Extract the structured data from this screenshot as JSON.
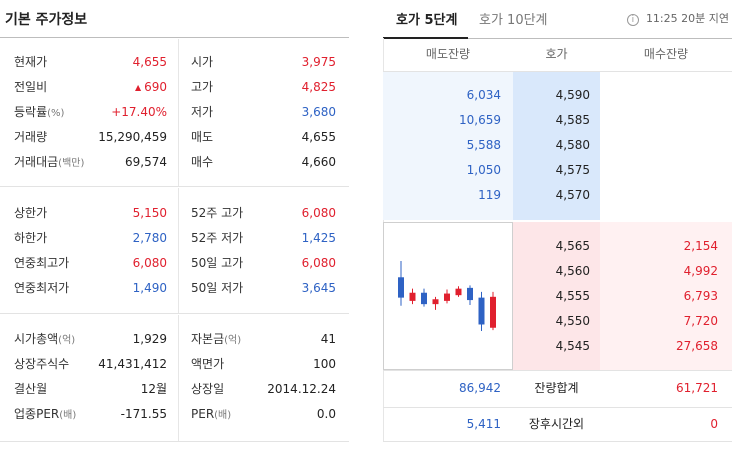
{
  "left": {
    "title": "기본 주가정보",
    "sections": [
      [
        {
          "l1": "현재가",
          "u1": "",
          "v1": "4,655",
          "c1": "red",
          "l2": "시가",
          "u2": "",
          "v2": "3,975",
          "c2": "red"
        },
        {
          "l1": "전일비",
          "u1": "",
          "v1": "690",
          "c1": "red",
          "tri": "▲",
          "l2": "고가",
          "u2": "",
          "v2": "4,825",
          "c2": "red"
        },
        {
          "l1": "등락률",
          "u1": "(%)",
          "v1": "+17.40%",
          "c1": "red",
          "l2": "저가",
          "u2": "",
          "v2": "3,680",
          "c2": "blue"
        },
        {
          "l1": "거래량",
          "u1": "",
          "v1": "15,290,459",
          "c1": "dark",
          "l2": "매도",
          "u2": "",
          "v2": "4,655",
          "c2": "dark"
        },
        {
          "l1": "거래대금",
          "u1": "(백만)",
          "v1": "69,574",
          "c1": "dark",
          "l2": "매수",
          "u2": "",
          "v2": "4,660",
          "c2": "dark"
        }
      ],
      [
        {
          "l1": "상한가",
          "u1": "",
          "v1": "5,150",
          "c1": "red",
          "l2": "52주 고가",
          "u2": "",
          "v2": "6,080",
          "c2": "red"
        },
        {
          "l1": "하한가",
          "u1": "",
          "v1": "2,780",
          "c1": "blue",
          "l2": "52주 저가",
          "u2": "",
          "v2": "1,425",
          "c2": "blue"
        },
        {
          "l1": "연중최고가",
          "u1": "",
          "v1": "6,080",
          "c1": "red",
          "l2": "50일 고가",
          "u2": "",
          "v2": "6,080",
          "c2": "red"
        },
        {
          "l1": "연중최저가",
          "u1": "",
          "v1": "1,490",
          "c1": "blue",
          "l2": "50일 저가",
          "u2": "",
          "v2": "3,645",
          "c2": "blue"
        }
      ],
      [
        {
          "l1": "시가총액",
          "u1": "(억)",
          "v1": "1,929",
          "c1": "dark",
          "l2": "자본금",
          "u2": "(억)",
          "v2": "41",
          "c2": "dark"
        },
        {
          "l1": "상장주식수",
          "u1": "",
          "v1": "41,431,412",
          "c1": "dark",
          "l2": "액면가",
          "u2": "",
          "v2": "100",
          "c2": "dark"
        },
        {
          "l1": "결산월",
          "u1": "",
          "v1": "12월",
          "c1": "dark",
          "l2": "상장일",
          "u2": "",
          "v2": "2014.12.24",
          "c2": "dark"
        },
        {
          "l1": "업종PER",
          "u1": "(배)",
          "v1": "-171.55",
          "c1": "dark",
          "l2": "PER",
          "u2": "(배)",
          "v2": "0.0",
          "c2": "dark"
        }
      ]
    ]
  },
  "right": {
    "tabs": [
      {
        "label": "호가 5단계",
        "active": true
      },
      {
        "label": "호가 10단계",
        "active": false
      }
    ],
    "time_label": "11:25 20분 지연",
    "info_icon": "i",
    "headers": {
      "sell": "매도잔량",
      "price": "호가",
      "buy": "매수잔량"
    },
    "sell_orders": [
      {
        "qty": "6,034",
        "price": "4,590"
      },
      {
        "qty": "10,659",
        "price": "4,585"
      },
      {
        "qty": "5,588",
        "price": "4,580"
      },
      {
        "qty": "1,050",
        "price": "4,575"
      },
      {
        "qty": "119",
        "price": "4,570"
      }
    ],
    "buy_orders": [
      {
        "price": "4,565",
        "qty": "2,154"
      },
      {
        "price": "4,560",
        "qty": "4,992"
      },
      {
        "price": "4,555",
        "qty": "6,793"
      },
      {
        "price": "4,550",
        "qty": "7,720"
      },
      {
        "price": "4,545",
        "qty": "27,658"
      }
    ],
    "summary": [
      {
        "sell": "86,942",
        "label": "잔량합계",
        "buy": "61,721"
      },
      {
        "sell": "5,411",
        "label": "장후시간외",
        "buy": "0"
      }
    ],
    "mini_chart": {
      "up_color": "#e0202e",
      "down_color": "#2e62c4",
      "candles": [
        {
          "dir": "down",
          "open": 4300,
          "close": 4050,
          "high": 4500,
          "low": 3950
        },
        {
          "dir": "up",
          "open": 4010,
          "close": 4110,
          "high": 4160,
          "low": 3970
        },
        {
          "dir": "down",
          "open": 4110,
          "close": 3970,
          "high": 4160,
          "low": 3940
        },
        {
          "dir": "up",
          "open": 3970,
          "close": 4030,
          "high": 4060,
          "low": 3900
        },
        {
          "dir": "up",
          "open": 4010,
          "close": 4100,
          "high": 4150,
          "low": 3980
        },
        {
          "dir": "up",
          "open": 4080,
          "close": 4160,
          "high": 4190,
          "low": 4060
        },
        {
          "dir": "down",
          "open": 4170,
          "close": 4020,
          "high": 4200,
          "low": 3960
        },
        {
          "dir": "down",
          "open": 4050,
          "close": 3720,
          "high": 4120,
          "low": 3640
        },
        {
          "dir": "up",
          "open": 3680,
          "close": 4060,
          "high": 4120,
          "low": 3650
        }
      ]
    }
  }
}
